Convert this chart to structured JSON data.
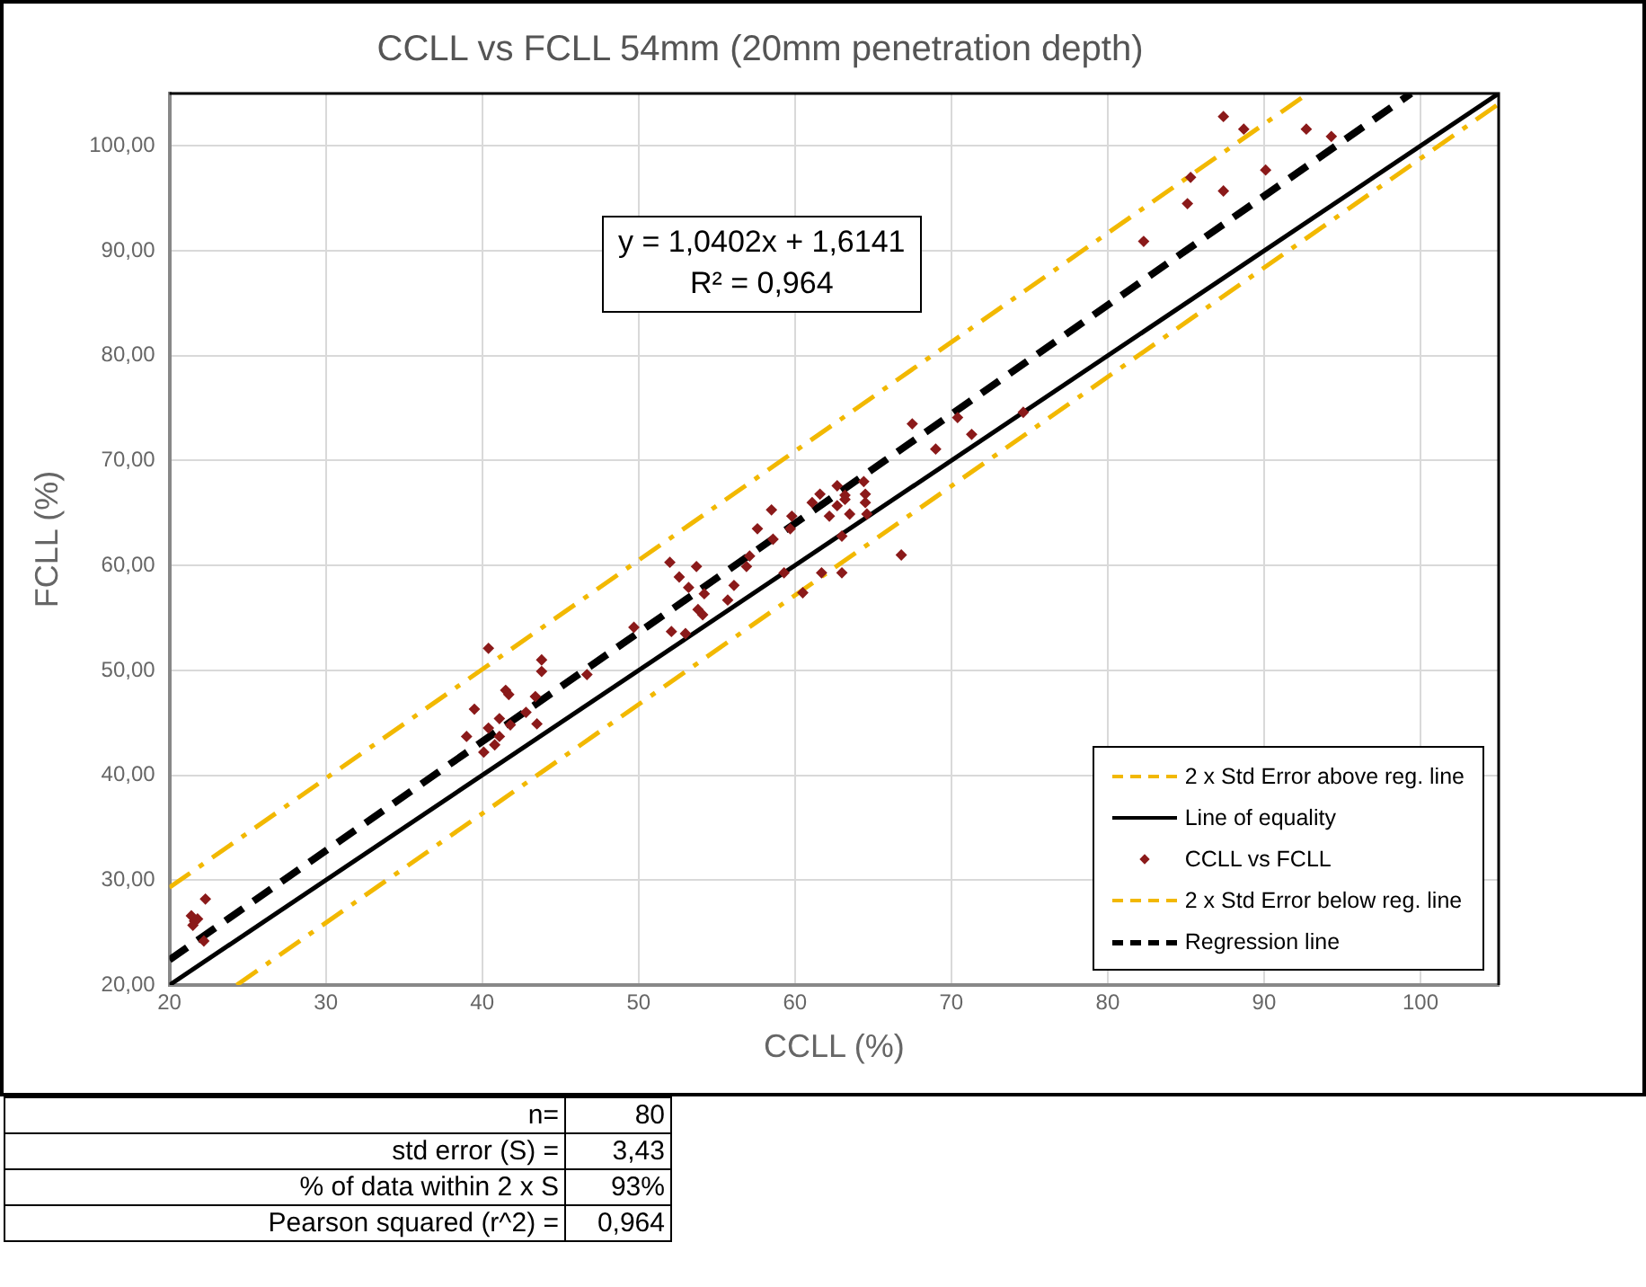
{
  "chart_data": {
    "type": "scatter",
    "title": "CCLL vs FCLL 54mm (20mm penetration depth)",
    "xlabel": "CCLL (%)",
    "ylabel": "FCLL (%)",
    "xlim": [
      20,
      105
    ],
    "ylim": [
      20,
      105
    ],
    "xticks": [
      20,
      30,
      40,
      50,
      60,
      70,
      80,
      90,
      100
    ],
    "yticks": [
      {
        "value": 20,
        "label": "20,00"
      },
      {
        "value": 30,
        "label": "30,00"
      },
      {
        "value": 40,
        "label": "40,00"
      },
      {
        "value": 50,
        "label": "50,00"
      },
      {
        "value": 60,
        "label": "60,00"
      },
      {
        "value": 70,
        "label": "70,00"
      },
      {
        "value": 80,
        "label": "80,00"
      },
      {
        "value": 90,
        "label": "90,00"
      },
      {
        "value": 100,
        "label": "100,00"
      }
    ],
    "grid": true,
    "legend": "bottom right",
    "series": [
      {
        "name": "2 x Std Error above reg. line",
        "type": "line",
        "color": "#f2b800",
        "line_style": "dashed",
        "marker": "none",
        "x": [
          20,
          92.8
        ],
        "values": [
          29.3,
          105
        ]
      },
      {
        "name": "Line of equality",
        "type": "line",
        "color": "#000000",
        "line_style": "solid",
        "marker": "none",
        "x": [
          20,
          105
        ],
        "values": [
          20,
          105
        ]
      },
      {
        "name": "CCLL vs FCLL",
        "type": "scatter",
        "color": "#8b1a1a",
        "marker": "diamond",
        "x": [
          21.4,
          21.6,
          21.8,
          21.5,
          22.3,
          22.2,
          40.4,
          43.8,
          43.8,
          41.5,
          41.7,
          39.5,
          39.0,
          40.4,
          41.1,
          41.1,
          41.8,
          42.8,
          40.1,
          40.8,
          43.4,
          43.5,
          46.7,
          49.7,
          52.1,
          53.0,
          52.0,
          52.6,
          53.7,
          53.2,
          54.2,
          53.8,
          54.1,
          55.7,
          56.1,
          56.9,
          57.1,
          57.6,
          58.5,
          58.6,
          59.3,
          59.7,
          59.8,
          60.5,
          61.1,
          61.6,
          61.7,
          62.2,
          62.7,
          62.7,
          63.0,
          63.0,
          63.2,
          63.2,
          63.5,
          64.4,
          64.5,
          64.5,
          64.6,
          66.8,
          67.5,
          69.0,
          70.4,
          71.3,
          74.6,
          87.4,
          88.7,
          92.7,
          94.3,
          85.3,
          85.1,
          87.4,
          90.1,
          82.3
        ],
        "values": [
          26.6,
          26.1,
          26.3,
          25.7,
          28.2,
          24.2,
          52.1,
          51.0,
          49.9,
          48.1,
          47.7,
          46.3,
          43.7,
          44.5,
          45.4,
          43.7,
          44.8,
          46.0,
          42.2,
          42.9,
          47.5,
          44.9,
          49.6,
          54.1,
          53.7,
          53.5,
          60.3,
          58.9,
          59.9,
          57.9,
          57.3,
          55.8,
          55.3,
          56.7,
          58.1,
          59.9,
          60.9,
          63.5,
          65.3,
          62.5,
          59.3,
          63.5,
          64.7,
          57.4,
          66.0,
          66.8,
          59.3,
          64.7,
          67.6,
          65.7,
          62.8,
          59.3,
          66.7,
          66.3,
          64.9,
          68.0,
          66.8,
          66.0,
          64.9,
          61.0,
          73.5,
          71.1,
          74.1,
          72.5,
          74.6,
          102.8,
          101.6,
          101.6,
          100.9,
          97.0,
          94.5,
          95.7,
          97.7,
          90.9
        ]
      },
      {
        "name": "2 x Std Error below reg. line",
        "type": "line",
        "color": "#f2b800",
        "line_style": "dashed",
        "marker": "none",
        "x": [
          24.3,
          105
        ],
        "values": [
          20,
          104
        ]
      },
      {
        "name": "Regression line",
        "type": "line",
        "color": "#000000",
        "line_style": "dashed",
        "marker": "none",
        "x": [
          20,
          99.4
        ],
        "values": [
          22.4,
          105
        ]
      }
    ],
    "annotations": [
      "y = 1,0402x + 1,6141",
      "R² = 0,964",
      "n=",
      "80",
      "std error (S)  =",
      "3,43",
      "% of data within 2 x S",
      "93%",
      "Pearson squared (r^2) =",
      "0,964"
    ]
  }
}
